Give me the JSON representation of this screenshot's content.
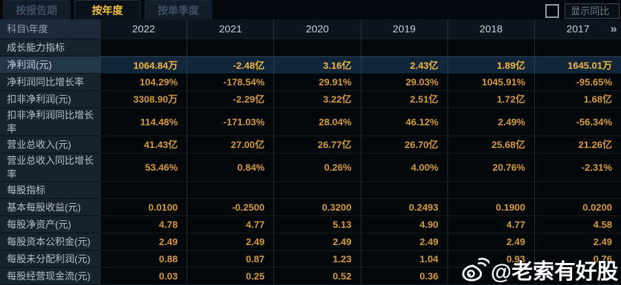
{
  "tabs": [
    {
      "label": "按报告期",
      "active": false
    },
    {
      "label": "按年度",
      "active": true
    },
    {
      "label": "按单季度",
      "active": false
    }
  ],
  "controls": {
    "show_yoy_label": "显示同比",
    "checkbox_checked": false
  },
  "table": {
    "corner_label": "科目\\年度",
    "years": [
      "2022",
      "2021",
      "2020",
      "2019",
      "2018",
      "2017"
    ],
    "more_icon": "»",
    "rows": [
      {
        "label": "成长能力指标",
        "type": "section",
        "values": [
          "",
          "",
          "",
          "",
          "",
          ""
        ]
      },
      {
        "label": "净利润(元)",
        "type": "highlight",
        "values": [
          "1064.84万",
          "-2.48亿",
          "3.16亿",
          "2.43亿",
          "1.89亿",
          "1645.01万"
        ]
      },
      {
        "label": "净利润同比增长率",
        "type": "normal",
        "values": [
          "104.29%",
          "-178.54%",
          "29.91%",
          "29.03%",
          "1045.91%",
          "-95.65%"
        ]
      },
      {
        "label": "扣非净利润(元)",
        "type": "normal",
        "values": [
          "3308.90万",
          "-2.29亿",
          "3.22亿",
          "2.51亿",
          "1.72亿",
          "1.68亿"
        ]
      },
      {
        "label": "扣非净利润同比增长率",
        "type": "normal",
        "values": [
          "114.48%",
          "-171.03%",
          "28.04%",
          "46.12%",
          "2.49%",
          "-56.34%"
        ]
      },
      {
        "label": "营业总收入(元)",
        "type": "normal",
        "values": [
          "41.43亿",
          "27.00亿",
          "26.77亿",
          "26.70亿",
          "25.68亿",
          "21.26亿"
        ]
      },
      {
        "label": "营业总收入同比增长率",
        "type": "normal",
        "values": [
          "53.46%",
          "0.84%",
          "0.26%",
          "4.00%",
          "20.76%",
          "-2.31%"
        ]
      },
      {
        "label": "每股指标",
        "type": "section",
        "values": [
          "",
          "",
          "",
          "",
          "",
          ""
        ]
      },
      {
        "label": "基本每股收益(元)",
        "type": "normal",
        "values": [
          "0.0100",
          "-0.2500",
          "0.3200",
          "0.2493",
          "0.1900",
          "0.0200"
        ]
      },
      {
        "label": "每股净资产(元)",
        "type": "normal",
        "values": [
          "4.78",
          "4.77",
          "5.13",
          "4.90",
          "4.77",
          "4.58"
        ]
      },
      {
        "label": "每股资本公积金(元)",
        "type": "normal",
        "values": [
          "2.49",
          "2.49",
          "2.49",
          "2.49",
          "2.49",
          "2.49"
        ]
      },
      {
        "label": "每股未分配利润(元)",
        "type": "normal",
        "values": [
          "0.88",
          "0.87",
          "1.23",
          "1.04",
          "0.93",
          "0.76"
        ]
      },
      {
        "label": "每股经营现金流(元)",
        "type": "normal",
        "values": [
          "0.03",
          "0.25",
          "0.52",
          "0.36",
          "",
          ""
        ]
      }
    ]
  },
  "watermark": {
    "text": "@老索有好股",
    "icon": "weibo-logo"
  },
  "colors": {
    "accent_gold": "#f3c13d",
    "value_gold": "#d59a3d",
    "highlight_row_bg": "#12263a",
    "label_cell_bg": "#17232d",
    "page_bg": "#06090d"
  }
}
